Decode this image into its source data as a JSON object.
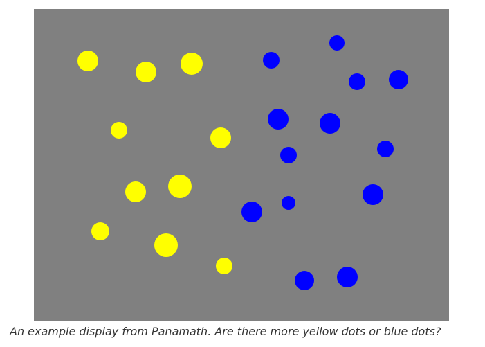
{
  "display": {
    "background_color": "#808080",
    "dot_colors": {
      "yellow": "#ffff00",
      "blue": "#0000ff"
    }
  },
  "caption": "An example display from Panamath. Are there more yellow dots or blue dots?"
}
